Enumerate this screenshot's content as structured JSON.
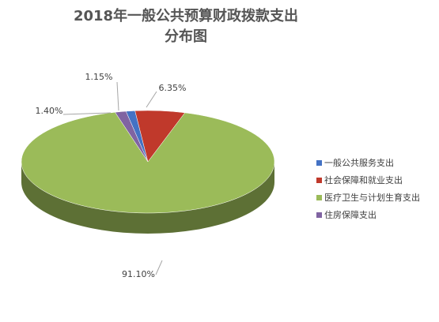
{
  "chart_data": {
    "type": "pie3d",
    "title": "2018年一般公共预算财政拨款支出分布图",
    "categories": [
      "一般公共服务支出",
      "社会保障和就业支出",
      "医疗卫生与计划生育支出",
      "住房保障支出"
    ],
    "values": [
      1.15,
      6.35,
      91.1,
      1.4
    ],
    "value_labels": [
      "1.15%",
      "6.35%",
      "91.10%",
      "1.40%"
    ],
    "colors": [
      "#4472c4",
      "#c0392b",
      "#9bbb59",
      "#8064a2"
    ],
    "legend": "right"
  }
}
